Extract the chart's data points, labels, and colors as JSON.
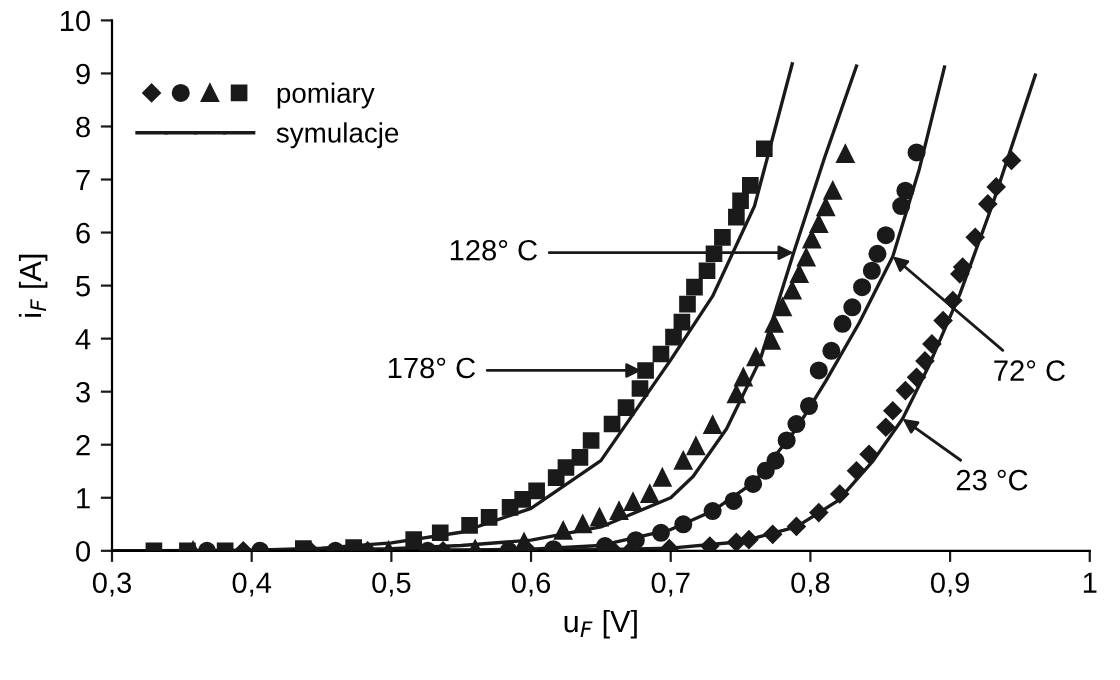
{
  "chart_data": {
    "type": "scatter",
    "xlabel": "u$_{F}$ [V]",
    "ylabel": "i$_{F}$ [A]",
    "xlim": [
      0.3,
      1
    ],
    "ylim": [
      0,
      10
    ],
    "xticks": [
      {
        "value": 0.3,
        "label": "0,3"
      },
      {
        "value": 0.4,
        "label": "0,4"
      },
      {
        "value": 0.5,
        "label": "0,5"
      },
      {
        "value": 0.6,
        "label": "0,6"
      },
      {
        "value": 0.7,
        "label": "0,7"
      },
      {
        "value": 0.8,
        "label": "0,8"
      },
      {
        "value": 0.9,
        "label": "0,9"
      },
      1
    ],
    "yticks": [
      0,
      1,
      2,
      3,
      4,
      5,
      6,
      7,
      8,
      9,
      10
    ],
    "grid": false,
    "legend": "top left",
    "series": [
      {
        "marker": "diamond",
        "color": "#1a1a1a",
        "x": [
          0.394,
          0.442,
          0.483,
          0.537,
          0.598,
          0.659,
          0.671,
          0.699,
          0.728,
          0.747,
          0.756,
          0.773,
          0.79,
          0.806,
          0.821,
          0.833,
          0.842,
          0.854,
          0.859,
          0.868,
          0.876,
          0.882,
          0.887,
          0.895,
          0.902,
          0.907,
          0.909,
          0.918,
          0.927,
          0.933,
          0.944
        ],
        "values": [
          0,
          0,
          0,
          0,
          0,
          0,
          0,
          0.04,
          0.09,
          0.16,
          0.21,
          0.31,
          0.46,
          0.72,
          1.07,
          1.51,
          1.82,
          2.33,
          2.64,
          3.02,
          3.27,
          3.58,
          3.9,
          4.34,
          4.72,
          5.22,
          5.35,
          5.91,
          6.54,
          6.86,
          7.36
        ]
      },
      {
        "marker": "circle",
        "color": "#1a1a1a",
        "x": [
          0.368,
          0.406,
          0.46,
          0.526,
          0.584,
          0.616,
          0.653,
          0.675,
          0.693,
          0.709,
          0.73,
          0.745,
          0.759,
          0.768,
          0.775,
          0.783,
          0.79,
          0.799,
          0.806,
          0.815,
          0.823,
          0.83,
          0.837,
          0.844,
          0.848,
          0.854,
          0.865,
          0.868,
          0.876
        ],
        "values": [
          0,
          0,
          0,
          0,
          0,
          0.03,
          0.09,
          0.2,
          0.34,
          0.5,
          0.75,
          0.94,
          1.26,
          1.51,
          1.7,
          2.08,
          2.39,
          2.73,
          3.4,
          3.77,
          4.28,
          4.59,
          4.97,
          5.28,
          5.6,
          5.95,
          6.5,
          6.79,
          7.51
        ]
      },
      {
        "marker": "triangle",
        "color": "#1a1a1a",
        "x": [
          0.358,
          0.498,
          0.56,
          0.595,
          0.623,
          0.637,
          0.649,
          0.663,
          0.673,
          0.685,
          0.694,
          0.709,
          0.718,
          0.73,
          0.747,
          0.752,
          0.761,
          0.772,
          0.774,
          0.78,
          0.787,
          0.792,
          0.797,
          0.801,
          0.806,
          0.811,
          0.816,
          0.825
        ],
        "values": [
          0,
          0,
          0.03,
          0.16,
          0.38,
          0.5,
          0.63,
          0.75,
          0.92,
          1.07,
          1.38,
          1.7,
          1.97,
          2.37,
          2.95,
          3.27,
          3.65,
          3.96,
          4.28,
          4.59,
          4.91,
          5.22,
          5.53,
          5.87,
          6.16,
          6.48,
          6.79,
          7.48
        ]
      },
      {
        "name": "pomiary",
        "marker": "square",
        "color": "#1a1a1a",
        "x": [
          0.33,
          0.354,
          0.381,
          0.437,
          0.473,
          0.516,
          0.535,
          0.556,
          0.57,
          0.585,
          0.594,
          0.604,
          0.618,
          0.625,
          0.635,
          0.643,
          0.658,
          0.668,
          0.678,
          0.682,
          0.693,
          0.702,
          0.708,
          0.712,
          0.717,
          0.726,
          0.731,
          0.737,
          0.747,
          0.75,
          0.757,
          0.767
        ],
        "values": [
          0,
          0,
          0,
          0.04,
          0.06,
          0.21,
          0.34,
          0.48,
          0.63,
          0.82,
          0.97,
          1.13,
          1.38,
          1.57,
          1.76,
          2.08,
          2.39,
          2.7,
          3.06,
          3.4,
          3.71,
          4.03,
          4.31,
          4.65,
          4.97,
          5.28,
          5.6,
          5.91,
          6.29,
          6.6,
          6.89,
          7.58
        ]
      },
      {
        "name": "symulacje",
        "type": "line",
        "color": "#1a1a1a",
        "x": [
          0.3,
          0.55,
          0.65,
          0.7,
          0.75,
          0.79,
          0.82,
          0.845,
          0.866,
          0.885,
          0.907,
          0.93,
          0.961
        ],
        "values": [
          0,
          0.01,
          0.02,
          0.05,
          0.17,
          0.45,
          0.95,
          1.7,
          2.49,
          3.5,
          4.84,
          6.5,
          8.97
        ]
      },
      {
        "type": "line",
        "color": "#1a1a1a",
        "x": [
          0.3,
          0.5,
          0.6,
          0.65,
          0.7,
          0.73,
          0.76,
          0.79,
          0.811,
          0.835,
          0.859,
          0.878,
          0.896
        ],
        "values": [
          0,
          0,
          0.03,
          0.1,
          0.4,
          0.75,
          1.3,
          2.3,
          3.2,
          4.3,
          5.55,
          7.2,
          9.12
        ]
      },
      {
        "type": "line",
        "color": "#1a1a1a",
        "x": [
          0.3,
          0.45,
          0.5,
          0.55,
          0.6,
          0.65,
          0.7,
          0.716,
          0.74,
          0.764,
          0.788,
          0.81,
          0.833
        ],
        "values": [
          0,
          0.01,
          0.04,
          0.1,
          0.2,
          0.45,
          1.0,
          1.4,
          2.3,
          3.6,
          5.62,
          7.4,
          9.14
        ]
      },
      {
        "type": "line",
        "color": "#1a1a1a",
        "x": [
          0.3,
          0.4,
          0.45,
          0.5,
          0.55,
          0.6,
          0.65,
          0.7,
          0.73,
          0.76,
          0.787
        ],
        "values": [
          0,
          0.01,
          0.05,
          0.15,
          0.35,
          0.8,
          1.7,
          3.6,
          4.8,
          6.5,
          9.18
        ]
      }
    ],
    "annotations": [
      {
        "text": "128° C",
        "x": 0.788,
        "y": 5.62
      },
      {
        "text": "178° C",
        "x": 0.682,
        "y": 3.4
      },
      {
        "text": "72° C",
        "x": 0.859,
        "y": 5.55
      },
      {
        "text": "23 °C",
        "x": 0.866,
        "y": 2.49
      }
    ]
  }
}
